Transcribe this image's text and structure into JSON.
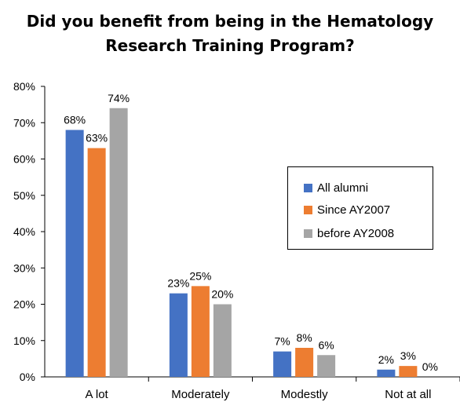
{
  "chart_data": {
    "type": "bar",
    "title_lines": [
      "Did you benefit from being in the Hematology",
      "Research Training Program?"
    ],
    "categories": [
      "A lot",
      "Moderately",
      "Modestly",
      "Not at all"
    ],
    "series": [
      {
        "name": "All alumni",
        "values": [
          68,
          23,
          7,
          2
        ],
        "labels": [
          "68%",
          "23%",
          "7%",
          "2%"
        ],
        "color": "#4472C4"
      },
      {
        "name": "Since AY2007",
        "values": [
          63,
          25,
          8,
          3
        ],
        "labels": [
          "63%",
          "25%",
          "8%",
          "3%"
        ],
        "color": "#ED7D31"
      },
      {
        "name": "before AY2008",
        "values": [
          74,
          20,
          6,
          0
        ],
        "labels": [
          "74%",
          "20%",
          "6%",
          "0%"
        ],
        "color": "#A5A5A5"
      }
    ],
    "ylim": [
      0,
      80
    ],
    "yticks": [
      0,
      10,
      20,
      30,
      40,
      50,
      60,
      70,
      80
    ],
    "ytick_labels": [
      "0%",
      "10%",
      "20%",
      "30%",
      "40%",
      "50%",
      "60%",
      "70%",
      "80%"
    ],
    "grid": false,
    "legend_position": "right"
  }
}
